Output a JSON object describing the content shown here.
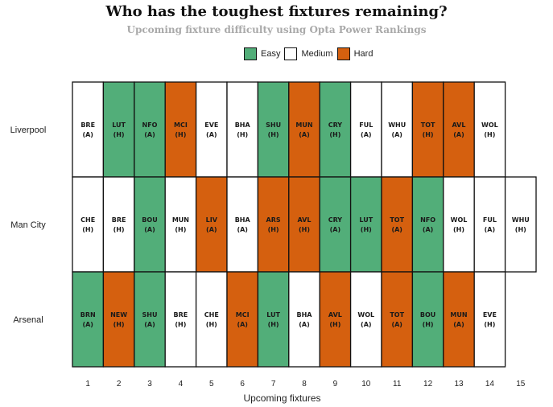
{
  "colors": {
    "Easy": "#52ae79",
    "Medium": "#ffffff",
    "Hard": "#d5600f",
    "border": "#111111"
  },
  "chart_data": {
    "type": "heatmap",
    "title": "Who has the toughest fixtures remaining?",
    "subtitle": "Upcoming fixture difficulty using Opta Power Rankings",
    "xlabel": "Upcoming fixtures",
    "legend": [
      "Easy",
      "Medium",
      "Hard"
    ],
    "x": [
      1,
      2,
      3,
      4,
      5,
      6,
      7,
      8,
      9,
      10,
      11,
      12,
      13,
      14,
      15
    ],
    "series": [
      {
        "name": "Liverpool",
        "fixtures": [
          {
            "opp": "BRE",
            "venue": "(A)",
            "difficulty": "Medium"
          },
          {
            "opp": "LUT",
            "venue": "(H)",
            "difficulty": "Easy"
          },
          {
            "opp": "NFO",
            "venue": "(A)",
            "difficulty": "Easy"
          },
          {
            "opp": "MCI",
            "venue": "(H)",
            "difficulty": "Hard"
          },
          {
            "opp": "EVE",
            "venue": "(A)",
            "difficulty": "Medium"
          },
          {
            "opp": "BHA",
            "venue": "(H)",
            "difficulty": "Medium"
          },
          {
            "opp": "SHU",
            "venue": "(H)",
            "difficulty": "Easy"
          },
          {
            "opp": "MUN",
            "venue": "(A)",
            "difficulty": "Hard"
          },
          {
            "opp": "CRY",
            "venue": "(H)",
            "difficulty": "Easy"
          },
          {
            "opp": "FUL",
            "venue": "(A)",
            "difficulty": "Medium"
          },
          {
            "opp": "WHU",
            "venue": "(A)",
            "difficulty": "Medium"
          },
          {
            "opp": "TOT",
            "venue": "(H)",
            "difficulty": "Hard"
          },
          {
            "opp": "AVL",
            "venue": "(A)",
            "difficulty": "Hard"
          },
          {
            "opp": "WOL",
            "venue": "(H)",
            "difficulty": "Medium"
          }
        ]
      },
      {
        "name": "Man City",
        "fixtures": [
          {
            "opp": "CHE",
            "venue": "(H)",
            "difficulty": "Medium"
          },
          {
            "opp": "BRE",
            "venue": "(H)",
            "difficulty": "Medium"
          },
          {
            "opp": "BOU",
            "venue": "(A)",
            "difficulty": "Easy"
          },
          {
            "opp": "MUN",
            "venue": "(H)",
            "difficulty": "Medium"
          },
          {
            "opp": "LIV",
            "venue": "(A)",
            "difficulty": "Hard"
          },
          {
            "opp": "BHA",
            "venue": "(A)",
            "difficulty": "Medium"
          },
          {
            "opp": "ARS",
            "venue": "(H)",
            "difficulty": "Hard"
          },
          {
            "opp": "AVL",
            "venue": "(H)",
            "difficulty": "Hard"
          },
          {
            "opp": "CRY",
            "venue": "(A)",
            "difficulty": "Easy"
          },
          {
            "opp": "LUT",
            "venue": "(H)",
            "difficulty": "Easy"
          },
          {
            "opp": "TOT",
            "venue": "(A)",
            "difficulty": "Hard"
          },
          {
            "opp": "NFO",
            "venue": "(A)",
            "difficulty": "Easy"
          },
          {
            "opp": "WOL",
            "venue": "(H)",
            "difficulty": "Medium"
          },
          {
            "opp": "FUL",
            "venue": "(A)",
            "difficulty": "Medium"
          },
          {
            "opp": "WHU",
            "venue": "(H)",
            "difficulty": "Medium"
          }
        ]
      },
      {
        "name": "Arsenal",
        "fixtures": [
          {
            "opp": "BRN",
            "venue": "(A)",
            "difficulty": "Easy"
          },
          {
            "opp": "NEW",
            "venue": "(H)",
            "difficulty": "Hard"
          },
          {
            "opp": "SHU",
            "venue": "(A)",
            "difficulty": "Easy"
          },
          {
            "opp": "BRE",
            "venue": "(H)",
            "difficulty": "Medium"
          },
          {
            "opp": "CHE",
            "venue": "(H)",
            "difficulty": "Medium"
          },
          {
            "opp": "MCI",
            "venue": "(A)",
            "difficulty": "Hard"
          },
          {
            "opp": "LUT",
            "venue": "(H)",
            "difficulty": "Easy"
          },
          {
            "opp": "BHA",
            "venue": "(A)",
            "difficulty": "Medium"
          },
          {
            "opp": "AVL",
            "venue": "(H)",
            "difficulty": "Hard"
          },
          {
            "opp": "WOL",
            "venue": "(A)",
            "difficulty": "Medium"
          },
          {
            "opp": "TOT",
            "venue": "(A)",
            "difficulty": "Hard"
          },
          {
            "opp": "BOU",
            "venue": "(H)",
            "difficulty": "Easy"
          },
          {
            "opp": "MUN",
            "venue": "(A)",
            "difficulty": "Hard"
          },
          {
            "opp": "EVE",
            "venue": "(H)",
            "difficulty": "Medium"
          }
        ]
      }
    ]
  }
}
